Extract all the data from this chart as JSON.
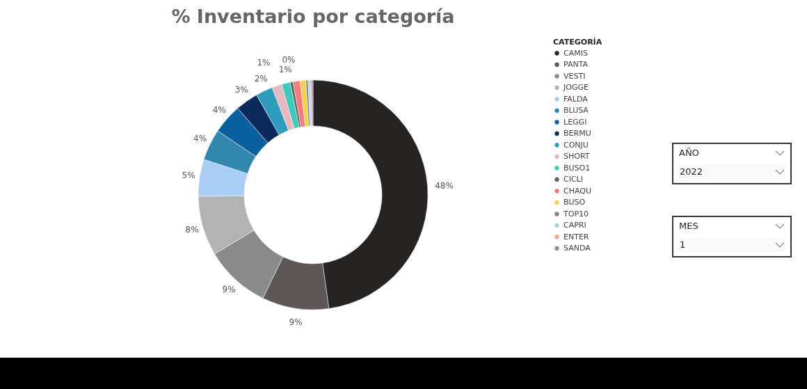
{
  "chart_data": {
    "type": "donut",
    "title": "% Inventario por categoría",
    "categories": [
      "CAMIS",
      "PANTA",
      "VESTI",
      "JOGGE",
      "FALDA",
      "BLUSA",
      "LEGGI",
      "BERMU",
      "CONJU",
      "SHORT",
      "BUSO1",
      "CICLI",
      "CHAQU",
      "BUSO",
      "TOP10",
      "CAPRI",
      "ENTER",
      "SANDA"
    ],
    "values": [
      47.8,
      9.4,
      9.2,
      8.4,
      5.2,
      4.4,
      4.2,
      3.2,
      2.4,
      1.4,
      1.2,
      0.4,
      1.0,
      0.8,
      0.3,
      0.3,
      0.2,
      0.2
    ],
    "colors": [
      "#252423",
      "#5f5757",
      "#8a8a8a",
      "#b3b3b3",
      "#a9cdf5",
      "#3187ae",
      "#0a5f9e",
      "#0b2a5c",
      "#2f9bbd",
      "#e6b8c0",
      "#3ec9bb",
      "#5c6464",
      "#f47c7c",
      "#f5d04c",
      "#7c8a8a",
      "#a8d8e8",
      "#f4a48c",
      "#a57fa8"
    ],
    "value_labels": [
      "48%",
      "9%",
      "9%",
      "8%",
      "5%",
      "4%",
      "4%",
      "3%",
      "2%",
      "1%",
      "1%",
      "0%",
      null,
      null,
      null,
      null,
      null,
      null
    ],
    "legend": "right",
    "legend_title": "CATEGORÍA",
    "annotations": [
      "AÑO",
      "2022",
      "MES",
      "1"
    ]
  }
}
